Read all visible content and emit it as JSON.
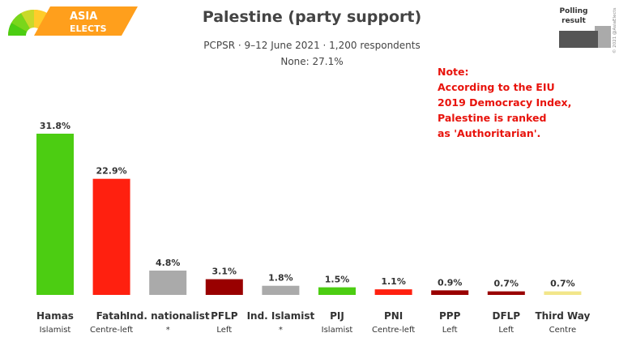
{
  "logo": {
    "line1": "ASIA",
    "line2": "ELECTS"
  },
  "header": {
    "title": "Palestine (party support)",
    "subtitle": "PCPSR · 9–12 June 2021 · 1,200 respondents",
    "none_line": "None: 27.1%"
  },
  "legend": {
    "line1": "Polling",
    "line2": "result",
    "copyright": "© 2021 @AsiaElects"
  },
  "note": {
    "lines": [
      "Note:",
      "According to the EIU",
      "2019 Democracy Index,",
      "Palestine is ranked",
      "as 'Authoritarian'."
    ]
  },
  "chart_data": {
    "type": "bar",
    "title": "Palestine (party support)",
    "subtitle": "PCPSR · 9–12 June 2021 · 1,200 respondents",
    "categories": [
      "Hamas",
      "Fatah",
      "Ind. nationalist",
      "PFLP",
      "Ind. Islamist",
      "PIJ",
      "PNI",
      "PPP",
      "DFLP",
      "Third Way"
    ],
    "ideologies": [
      "Islamist",
      "Centre-left",
      "*",
      "Left",
      "*",
      "Islamist",
      "Centre-left",
      "Left",
      "Left",
      "Centre"
    ],
    "values": [
      31.8,
      22.9,
      4.8,
      3.1,
      1.8,
      1.5,
      1.1,
      0.9,
      0.7,
      0.7
    ],
    "value_labels": [
      "31.8%",
      "22.9%",
      "4.8%",
      "3.1%",
      "1.8%",
      "1.5%",
      "1.1%",
      "0.9%",
      "0.7%",
      "0.7%"
    ],
    "colors": [
      "#4ccd12",
      "#ff200f",
      "#aaaaaa",
      "#990000",
      "#aaaaaa",
      "#4ccd12",
      "#ff200f",
      "#990000",
      "#990000",
      "#f2e68a"
    ],
    "ylim": [
      0,
      31.8
    ],
    "grid": false,
    "legend_position": "top-right"
  }
}
